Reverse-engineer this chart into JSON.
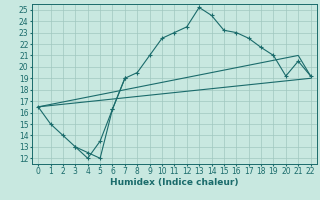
{
  "xlabel": "Humidex (Indice chaleur)",
  "xlim": [
    -0.5,
    22.5
  ],
  "ylim": [
    11.5,
    25.5
  ],
  "xticks": [
    0,
    1,
    2,
    3,
    4,
    5,
    6,
    7,
    8,
    9,
    10,
    11,
    12,
    13,
    14,
    15,
    16,
    17,
    18,
    19,
    20,
    21,
    22
  ],
  "yticks": [
    12,
    13,
    14,
    15,
    16,
    17,
    18,
    19,
    20,
    21,
    22,
    23,
    24,
    25
  ],
  "background_color": "#c8e8e0",
  "grid_color": "#a0c8c0",
  "line_color": "#1a6b6b",
  "line1_x": [
    0,
    1,
    2,
    3,
    4,
    5,
    6,
    7,
    8,
    9,
    10,
    11,
    12,
    13,
    14,
    15,
    16,
    17,
    18,
    19,
    20,
    21,
    22
  ],
  "line1_y": [
    16.5,
    15.0,
    14.0,
    13.0,
    12.5,
    12.0,
    16.3,
    19.0,
    19.5,
    21.0,
    22.5,
    23.0,
    23.5,
    25.2,
    24.5,
    23.2,
    23.0,
    22.5,
    21.7,
    21.0,
    19.2,
    20.5,
    19.2
  ],
  "line2_x": [
    0,
    21,
    22
  ],
  "line2_y": [
    16.5,
    21.0,
    19.2
  ],
  "line3_x": [
    0,
    22
  ],
  "line3_y": [
    16.5,
    19.0
  ],
  "line4_x": [
    3,
    4,
    5,
    6,
    7
  ],
  "line4_y": [
    13.0,
    12.0,
    13.5,
    16.3,
    19.0
  ]
}
